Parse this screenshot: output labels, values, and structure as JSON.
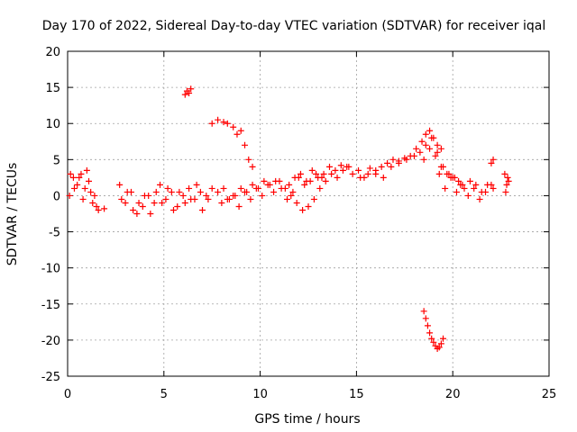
{
  "chart_data": {
    "type": "scatter",
    "title": "Day 170 of 2022, Sidereal Day-to-day VTEC variation (SDTVAR) for receiver iqal",
    "xlabel": "GPS time / hours",
    "ylabel": "SDTVAR / TECUs",
    "xlim": [
      0,
      25
    ],
    "ylim": [
      -25,
      20
    ],
    "xticks": [
      "0",
      "5",
      "10",
      "15",
      "20",
      "25"
    ],
    "yticks": [
      "20",
      "15",
      "10",
      "5",
      "0",
      "-5",
      "-10",
      "-15",
      "-20",
      "-25"
    ],
    "grid": true,
    "marker": "+",
    "color": "#ff0000",
    "series": [
      {
        "name": "SDTVAR",
        "segments": [
          {
            "x": [
              0.1,
              0.3,
              0.5,
              0.7,
              0.9,
              1.1,
              1.3,
              1.5
            ],
            "y": [
              0.0,
              2.5,
              1.5,
              3.0,
              1.0,
              2.0,
              -1.0,
              -1.5
            ]
          },
          {
            "x": [
              0.15,
              0.35,
              0.6,
              0.8,
              1.0,
              1.2,
              1.4,
              1.6,
              1.9
            ],
            "y": [
              3.0,
              1.0,
              2.5,
              -0.5,
              3.5,
              0.5,
              0.0,
              -2.0,
              -1.8
            ]
          },
          {
            "x": [
              2.7,
              3.0,
              3.3,
              3.6,
              3.9,
              4.2,
              4.5,
              4.8,
              5.1,
              5.4,
              5.7,
              6.0,
              6.3,
              6.6,
              6.9,
              7.2,
              7.5
            ],
            "y": [
              1.5,
              -1.0,
              0.5,
              -2.5,
              -1.5,
              0.0,
              -1.0,
              1.5,
              -0.5,
              0.5,
              -1.5,
              0.0,
              1.0,
              -0.5,
              0.5,
              0.0,
              1.0
            ]
          },
          {
            "x": [
              2.8,
              3.1,
              3.4,
              3.7,
              4.0,
              4.3,
              4.6,
              4.9,
              5.2,
              5.5,
              5.8,
              6.1,
              6.4,
              6.7,
              7.0,
              7.3
            ],
            "y": [
              -0.5,
              0.5,
              -2.0,
              -1.0,
              0.0,
              -2.5,
              0.5,
              -1.0,
              1.0,
              -2.0,
              0.5,
              -1.0,
              -0.5,
              1.5,
              -2.0,
              -0.5
            ]
          },
          {
            "x": [
              6.1,
              6.2,
              6.3,
              6.4
            ],
            "y": [
              14.0,
              14.5,
              14.2,
              14.8
            ]
          },
          {
            "x": [
              7.5,
              7.8,
              8.1,
              8.3,
              8.6,
              8.8,
              9.0,
              9.2,
              9.4,
              9.6
            ],
            "y": [
              10.0,
              10.5,
              10.2,
              10.0,
              9.5,
              8.5,
              9.0,
              7.0,
              5.0,
              4.0
            ]
          },
          {
            "x": [
              7.8,
              8.1,
              8.4,
              8.7,
              9.0,
              9.3,
              9.6,
              9.9,
              10.2,
              10.5,
              10.8,
              11.1,
              11.4,
              11.7,
              12.0,
              12.3,
              12.6,
              12.9,
              13.2
            ],
            "y": [
              0.5,
              1.0,
              -0.5,
              0.0,
              1.0,
              0.5,
              1.5,
              1.0,
              2.0,
              1.5,
              2.0,
              1.0,
              -0.5,
              0.5,
              2.5,
              1.5,
              2.0,
              3.0,
              2.5
            ]
          },
          {
            "x": [
              8.0,
              8.3,
              8.6,
              8.9,
              9.2,
              9.5,
              9.8,
              10.1,
              10.4,
              10.7,
              11.0,
              11.3,
              11.6,
              11.9,
              12.2,
              12.5,
              12.8,
              13.1,
              13.4,
              13.7,
              14.0,
              14.3,
              14.6
            ],
            "y": [
              -1.0,
              -0.5,
              0.0,
              -1.5,
              0.5,
              -0.5,
              1.0,
              0.0,
              1.5,
              0.5,
              2.0,
              1.0,
              0.0,
              -1.0,
              -2.0,
              -1.5,
              -0.5,
              1.0,
              2.0,
              3.0,
              2.5,
              3.5,
              4.0
            ]
          },
          {
            "x": [
              11.5,
              11.8,
              12.1,
              12.4,
              12.7,
              13.0,
              13.3,
              13.6,
              13.9,
              14.2,
              14.5
            ],
            "y": [
              1.5,
              2.5,
              3.0,
              2.0,
              3.5,
              2.5,
              3.0,
              4.0,
              3.5,
              4.2,
              4.0
            ]
          },
          {
            "x": [
              14.8,
              15.1,
              15.4,
              15.7,
              16.0,
              16.3,
              16.6,
              16.9,
              17.2,
              17.5,
              17.8,
              18.1,
              18.4,
              18.6,
              18.8,
              19.0,
              19.2,
              19.4
            ],
            "y": [
              3.0,
              3.5,
              2.5,
              3.8,
              3.0,
              4.0,
              4.5,
              5.0,
              4.8,
              5.2,
              5.5,
              6.5,
              7.5,
              8.5,
              9.0,
              8.0,
              7.0,
              6.5
            ]
          },
          {
            "x": [
              15.2,
              15.6,
              16.0,
              16.4,
              16.8,
              17.2,
              17.6,
              18.0,
              18.3,
              18.6,
              18.9,
              19.2,
              19.5,
              19.8,
              20.1,
              20.4
            ],
            "y": [
              2.5,
              3.0,
              3.5,
              2.5,
              4.0,
              4.5,
              5.0,
              5.5,
              6.0,
              7.0,
              8.0,
              6.0,
              4.0,
              3.0,
              2.5,
              1.5
            ]
          },
          {
            "x": [
              18.5,
              18.8,
              19.1,
              19.4,
              19.7,
              20.0,
              20.3,
              20.6,
              20.9,
              21.2,
              21.5,
              21.8,
              22.1
            ],
            "y": [
              5.0,
              6.5,
              5.5,
              4.0,
              3.0,
              2.5,
              2.0,
              1.0,
              2.0,
              1.5,
              0.5,
              1.5,
              1.0
            ]
          },
          {
            "x": [
              19.3,
              19.6,
              19.9,
              20.2,
              20.5,
              20.8,
              21.1,
              21.4,
              21.7,
              22.0
            ],
            "y": [
              3.0,
              1.0,
              2.5,
              0.5,
              1.5,
              0.0,
              1.0,
              -0.5,
              0.5,
              1.5
            ]
          },
          {
            "x": [
              22.0,
              22.1
            ],
            "y": [
              4.5,
              5.0
            ]
          },
          {
            "x": [
              22.7,
              22.8,
              22.9,
              22.75,
              22.85
            ],
            "y": [
              3.0,
              1.5,
              2.0,
              0.5,
              2.5
            ]
          },
          {
            "x": [
              18.5,
              18.6,
              18.7,
              18.8,
              18.9,
              19.0,
              19.1,
              19.2,
              19.3,
              19.4,
              19.5
            ],
            "y": [
              -16.0,
              -17.0,
              -18.0,
              -19.0,
              -19.8,
              -20.3,
              -20.8,
              -21.2,
              -21.0,
              -20.5,
              -19.8
            ]
          }
        ]
      }
    ]
  }
}
